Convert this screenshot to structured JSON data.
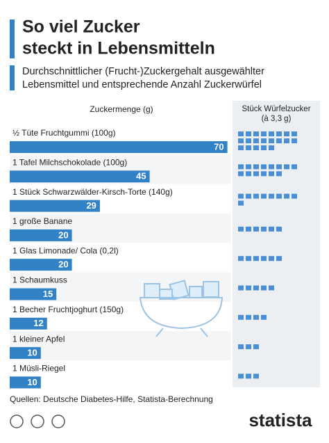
{
  "header": {
    "title_lines": [
      "So viel Zucker",
      "steckt in Lebensmitteln"
    ],
    "subtitle_lines": [
      "Durchschnittlicher (Frucht-)Zuckergehalt ausgewählter",
      "Lebensmittel und entsprechende Anzahl Zuckerwürfel"
    ]
  },
  "chart_data": {
    "type": "bar",
    "orientation": "horizontal",
    "x_label": "Zuckermenge (g)",
    "categories": [
      "½ Tüte Fruchtgummi (100g)",
      "1 Tafel Milchschokolade (100g)",
      "1 Stück Schwarzwälder-Kirsch-Torte (140g)",
      "1 große Banane",
      "1 Glas Limonade/ Cola (0,2l)",
      "1 Schaumkuss",
      "1 Becher Fruchtjoghurt (150g)",
      "1 kleiner Apfel",
      "1 Müsli-Riegel"
    ],
    "values": [
      70,
      45,
      29,
      20,
      20,
      15,
      12,
      10,
      10
    ],
    "color": "#3282c8",
    "cubes": {
      "label_lines": [
        "Stück Würfelzucker",
        "(à 3,3 g)"
      ],
      "values": [
        21,
        14,
        9,
        6,
        6,
        5,
        4,
        3,
        3
      ],
      "color": "#4a8fd6"
    }
  },
  "footer": {
    "source": "Quellen: Deutsche Diabetes-Hilfe, Statista-Berechnung",
    "brand": "statista"
  }
}
